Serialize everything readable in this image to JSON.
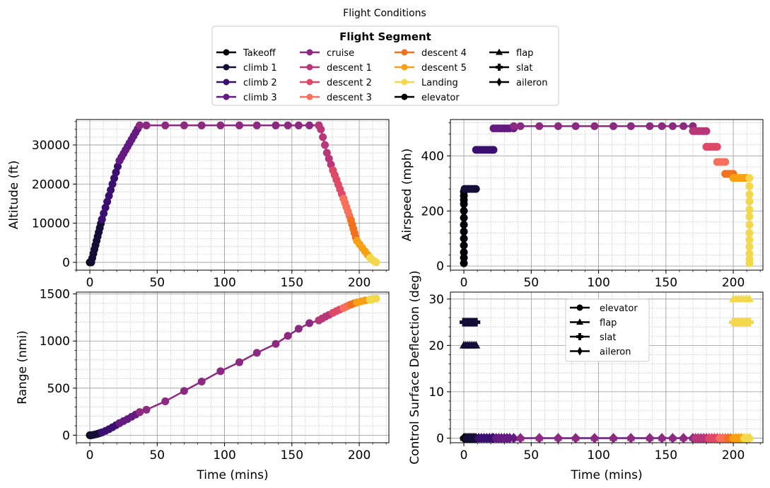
{
  "figure": {
    "title": "Flight Conditions",
    "legend_title": "Flight Segment",
    "legend_entries": [
      {
        "label": "Takeoff",
        "color": "#000004",
        "marker": "circle"
      },
      {
        "label": "climb 1",
        "color": "#140e36",
        "marker": "circle"
      },
      {
        "label": "climb 2",
        "color": "#3b0f70",
        "marker": "circle"
      },
      {
        "label": "climb 3",
        "color": "#641a80",
        "marker": "circle"
      },
      {
        "label": "cruise",
        "color": "#8c2981",
        "marker": "circle"
      },
      {
        "label": "descent 1",
        "color": "#b73779",
        "marker": "circle"
      },
      {
        "label": "descent 2",
        "color": "#de4968",
        "marker": "circle"
      },
      {
        "label": "descent 3",
        "color": "#f7705c",
        "marker": "circle"
      },
      {
        "label": "descent 4",
        "color": "#f1711f",
        "marker": "circle"
      },
      {
        "label": "descent 5",
        "color": "#f8a013",
        "marker": "circle"
      },
      {
        "label": "Landing",
        "color": "#f3d84c",
        "marker": "circle"
      },
      {
        "label": " elevator",
        "color": "#000000",
        "marker": "circle"
      },
      {
        "label": " flap",
        "color": "#000000",
        "marker": "triangle"
      },
      {
        "label": " slat",
        "color": "#000000",
        "marker": "cross"
      },
      {
        "label": " aileron",
        "color": "#000000",
        "marker": "diamond"
      }
    ],
    "control_legend": [
      {
        "label": "elevator",
        "marker": "circle"
      },
      {
        "label": "flap",
        "marker": "triangle"
      },
      {
        "label": "slat",
        "marker": "cross"
      },
      {
        "label": "aileron",
        "marker": "diamond"
      }
    ]
  },
  "chart_data": [
    {
      "type": "line",
      "ylabel": "Altitude (ft)",
      "xlabel": "",
      "xlim": [
        -10,
        222
      ],
      "ylim": [
        -2000,
        36500
      ],
      "xticks": [
        "0",
        "50",
        "100",
        "150",
        "200"
      ],
      "xtick_values": [
        0,
        50,
        100,
        150,
        200
      ],
      "yticks": [
        "0",
        "10000",
        "20000",
        "30000"
      ],
      "ytick_values": [
        0,
        10000,
        20000,
        30000
      ],
      "grid": true,
      "series": [
        {
          "segment": "Takeoff",
          "x": [
            0,
            0.2,
            0.4,
            0.6,
            0.8,
            1.0
          ],
          "y": [
            0,
            0,
            0,
            0,
            0,
            0
          ]
        },
        {
          "segment": "climb 1",
          "x": [
            1,
            1.8,
            2.6,
            3.4,
            4.2,
            5,
            5.8,
            6.6,
            7.4,
            8.2,
            9
          ],
          "y": [
            0,
            1100,
            2200,
            3300,
            4400,
            5500,
            6600,
            7700,
            8800,
            9900,
            11000
          ]
        },
        {
          "segment": "climb 2",
          "x": [
            9,
            10.3,
            11.6,
            12.9,
            14.2,
            15.5,
            16.8,
            18.1,
            19.4,
            20.7,
            22
          ],
          "y": [
            11000,
            12500,
            14000,
            15500,
            17000,
            18500,
            20000,
            21500,
            23000,
            24500,
            26000
          ]
        },
        {
          "segment": "climb 3",
          "x": [
            22,
            23.5,
            25,
            26.5,
            28,
            29.5,
            31,
            32.5,
            34,
            35.5,
            37
          ],
          "y": [
            26000,
            26900,
            27800,
            28700,
            29600,
            30500,
            31400,
            32300,
            33200,
            34100,
            35000
          ]
        },
        {
          "segment": "cruise",
          "x": [
            37,
            42,
            56,
            70,
            83,
            97,
            111,
            124,
            138,
            147,
            155,
            163,
            170
          ],
          "y": [
            35000,
            35000,
            35000,
            35000,
            35000,
            35000,
            35000,
            35000,
            35000,
            35000,
            35000,
            35000,
            35000
          ]
        },
        {
          "segment": "descent 1",
          "x": [
            170,
            171.5,
            173,
            174.5,
            176,
            177.5,
            179,
            180.5
          ],
          "y": [
            35000,
            34000,
            32000,
            30000,
            28000,
            26500,
            25000,
            23500
          ]
        },
        {
          "segment": "descent 2",
          "x": [
            180.5,
            181.8,
            183.1,
            184.4,
            185.7,
            187,
            188.3
          ],
          "y": [
            23500,
            22300,
            21100,
            19900,
            18700,
            17500,
            16300
          ]
        },
        {
          "segment": "descent 3",
          "x": [
            188.3,
            189.4,
            190.5,
            191.6,
            192.7,
            193.8
          ],
          "y": [
            16300,
            15200,
            14100,
            13000,
            11900,
            10800
          ]
        },
        {
          "segment": "descent 4",
          "x": [
            193.8,
            194.7,
            195.6,
            196.5,
            197.4,
            198.3
          ],
          "y": [
            10800,
            9700,
            8600,
            7500,
            6400,
            5500
          ]
        },
        {
          "segment": "descent 5",
          "x": [
            198.3,
            200.3,
            202.3,
            204.3,
            206.3,
            208
          ],
          "y": [
            5500,
            4600,
            3700,
            2800,
            1900,
            1200
          ]
        },
        {
          "segment": "Landing",
          "x": [
            208,
            209.5,
            211,
            212.5
          ],
          "y": [
            1200,
            700,
            300,
            0
          ]
        }
      ]
    },
    {
      "type": "line",
      "ylabel": "Airspeed (mph)",
      "xlabel": "",
      "xlim": [
        -10,
        222
      ],
      "ylim": [
        -15,
        532
      ],
      "xticks": [
        "0",
        "50",
        "100",
        "150",
        "200"
      ],
      "xtick_values": [
        0,
        50,
        100,
        150,
        200
      ],
      "yticks": [
        "0",
        "200",
        "400"
      ],
      "ytick_values": [
        0,
        200,
        400
      ],
      "grid": true,
      "series": [
        {
          "segment": "Takeoff",
          "x": [
            0,
            0,
            0,
            0,
            0,
            0,
            0,
            0,
            0,
            0,
            0,
            0,
            0
          ],
          "y": [
            10,
            30,
            50,
            75,
            100,
            125,
            150,
            175,
            200,
            225,
            240,
            255,
            270
          ]
        },
        {
          "segment": "climb 1",
          "x": [
            0.5,
            2,
            3.5,
            5,
            6.5,
            8,
            9
          ],
          "y": [
            280,
            280,
            280,
            280,
            280,
            280,
            280
          ]
        },
        {
          "segment": "climb 2",
          "x": [
            9,
            11,
            13,
            15,
            17,
            19,
            21,
            22
          ],
          "y": [
            422,
            422,
            422,
            422,
            422,
            422,
            422,
            422
          ]
        },
        {
          "segment": "climb 3",
          "x": [
            22,
            24,
            26,
            28,
            30,
            32,
            34,
            37
          ],
          "y": [
            500,
            500,
            500,
            500,
            500,
            500,
            500,
            500
          ]
        },
        {
          "segment": "cruise",
          "x": [
            37,
            42,
            56,
            70,
            83,
            97,
            111,
            124,
            138,
            147,
            155,
            163,
            170
          ],
          "y": [
            508,
            508,
            508,
            508,
            508,
            508,
            508,
            508,
            508,
            508,
            508,
            508,
            508
          ]
        },
        {
          "segment": "descent 1",
          "x": [
            170,
            172,
            174,
            176,
            178,
            180
          ],
          "y": [
            490,
            490,
            490,
            490,
            490,
            490
          ]
        },
        {
          "segment": "descent 2",
          "x": [
            180,
            182,
            184,
            186,
            188
          ],
          "y": [
            433,
            433,
            433,
            433,
            433
          ]
        },
        {
          "segment": "descent 3",
          "x": [
            188,
            190,
            192,
            194
          ],
          "y": [
            378,
            378,
            378,
            378
          ]
        },
        {
          "segment": "descent 4",
          "x": [
            194,
            196,
            198,
            200
          ],
          "y": [
            335,
            335,
            335,
            335
          ]
        },
        {
          "segment": "descent 5",
          "x": [
            200,
            202,
            204,
            206,
            208,
            210
          ],
          "y": [
            320,
            320,
            320,
            320,
            320,
            320
          ]
        },
        {
          "segment": "Landing",
          "x": [
            212,
            212,
            212,
            212,
            212,
            212,
            212,
            212,
            212,
            212,
            212,
            212,
            212
          ],
          "y": [
            320,
            290,
            260,
            235,
            205,
            180,
            150,
            120,
            95,
            70,
            45,
            25,
            10
          ]
        }
      ]
    },
    {
      "type": "line",
      "ylabel": "Range (nmi)",
      "xlabel": "Time (mins)",
      "xlim": [
        -10,
        222
      ],
      "ylim": [
        -80,
        1520
      ],
      "xticks": [
        "0",
        "50",
        "100",
        "150",
        "200"
      ],
      "xtick_values": [
        0,
        50,
        100,
        150,
        200
      ],
      "yticks": [
        "0",
        "500",
        "1000",
        "1500"
      ],
      "ytick_values": [
        0,
        500,
        1000,
        1500
      ],
      "grid": true,
      "series": [
        {
          "segment": "Takeoff",
          "x": [
            0,
            0.5,
            1
          ],
          "y": [
            0,
            0,
            0
          ]
        },
        {
          "segment": "climb 1",
          "x": [
            1,
            2.6,
            4.2,
            5.8,
            7.4,
            9
          ],
          "y": [
            0,
            4,
            9,
            15,
            22,
            30
          ]
        },
        {
          "segment": "climb 2",
          "x": [
            9,
            11.6,
            14.2,
            16.8,
            19.4,
            22
          ],
          "y": [
            30,
            46,
            64,
            84,
            106,
            128
          ]
        },
        {
          "segment": "climb 3",
          "x": [
            22,
            25,
            28,
            31,
            34,
            37
          ],
          "y": [
            128,
            150,
            172,
            196,
            220,
            245
          ]
        },
        {
          "segment": "cruise",
          "x": [
            37,
            42,
            56,
            70,
            83,
            97,
            111,
            124,
            138,
            147,
            155,
            163,
            170
          ],
          "y": [
            245,
            270,
            360,
            470,
            570,
            680,
            775,
            875,
            970,
            1055,
            1130,
            1190,
            1220
          ]
        },
        {
          "segment": "descent 1",
          "x": [
            170,
            172.5,
            175,
            177.5,
            180.5
          ],
          "y": [
            1220,
            1240,
            1260,
            1278,
            1300
          ]
        },
        {
          "segment": "descent 2",
          "x": [
            180.5,
            183,
            185.5,
            188.3
          ],
          "y": [
            1300,
            1318,
            1335,
            1352
          ]
        },
        {
          "segment": "descent 3",
          "x": [
            188.3,
            190.3,
            192,
            193.8
          ],
          "y": [
            1352,
            1366,
            1378,
            1388
          ]
        },
        {
          "segment": "descent 4",
          "x": [
            193.8,
            196,
            198.3
          ],
          "y": [
            1388,
            1400,
            1410
          ]
        },
        {
          "segment": "descent 5",
          "x": [
            198.3,
            201.5,
            204.5,
            208
          ],
          "y": [
            1410,
            1422,
            1432,
            1440
          ]
        },
        {
          "segment": "Landing",
          "x": [
            208,
            210,
            212.5
          ],
          "y": [
            1440,
            1446,
            1452
          ]
        }
      ]
    },
    {
      "type": "line",
      "ylabel": "Control Surface Deflection (deg)",
      "xlabel": "Time (mins)",
      "xlim": [
        -10,
        222
      ],
      "ylim": [
        -1,
        31.5
      ],
      "xticks": [
        "0",
        "50",
        "100",
        "150",
        "200"
      ],
      "xtick_values": [
        0,
        50,
        100,
        150,
        200
      ],
      "yticks": [
        "0",
        "10",
        "20",
        "30"
      ],
      "ytick_values": [
        0,
        10,
        20,
        30
      ],
      "grid": true,
      "zero_line_x": [
        0,
        1,
        2,
        3,
        4,
        5,
        6,
        7,
        8,
        9,
        11,
        13,
        15,
        17,
        19,
        21,
        22,
        24,
        26,
        28,
        30,
        32,
        34,
        37,
        42,
        56,
        70,
        83,
        97,
        111,
        124,
        138,
        147,
        155,
        163,
        170,
        172,
        174,
        176,
        178,
        180,
        182,
        184,
        186,
        188,
        190,
        192,
        194,
        196,
        198,
        200,
        202,
        204,
        206,
        208,
        210,
        212
      ],
      "flap_series": [
        {
          "segment": "climb 1",
          "x": [
            0,
            1.5,
            3,
            4.5,
            6,
            7.5,
            9
          ],
          "y": [
            20,
            20,
            20,
            20,
            20,
            20,
            20
          ]
        },
        {
          "segment": "Landing",
          "x": [
            200,
            202,
            204,
            206,
            208,
            210,
            212
          ],
          "y": [
            30,
            30,
            30,
            30,
            30,
            30,
            30
          ]
        }
      ],
      "slat_series": [
        {
          "segment": "climb 1",
          "x": [
            0,
            1.5,
            3,
            4.5,
            6,
            7.5,
            9
          ],
          "y": [
            25,
            25,
            25,
            25,
            25,
            25,
            25
          ]
        },
        {
          "segment": "Landing",
          "x": [
            200,
            202,
            204,
            206,
            208,
            210,
            212
          ],
          "y": [
            25,
            25,
            25,
            25,
            25,
            25,
            25
          ]
        }
      ]
    }
  ]
}
